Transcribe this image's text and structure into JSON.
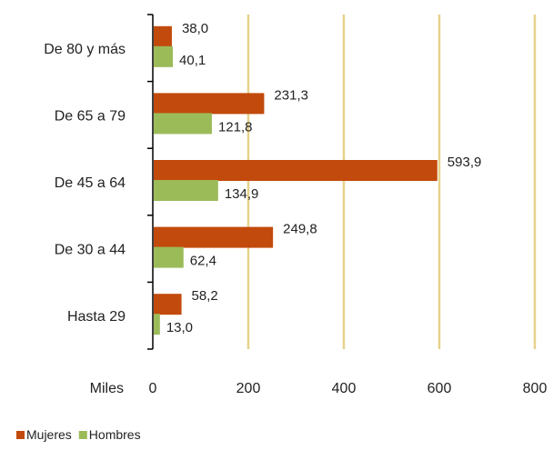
{
  "chart_data": {
    "type": "bar",
    "orientation": "horizontal",
    "categories": [
      "De 80 y más",
      "De 65 a 79",
      "De 45 a 64",
      "De 30 a 44",
      "Hasta 29"
    ],
    "series": [
      {
        "name": "Mujeres",
        "values": [
          38.0,
          231.3,
          593.9,
          249.8,
          58.2
        ],
        "labels": [
          "38,0",
          "231,3",
          "593,9",
          "249,8",
          "58,2"
        ],
        "color": "#C24A0C"
      },
      {
        "name": "Hombres",
        "values": [
          40.1,
          121.8,
          134.9,
          62.4,
          13.0
        ],
        "labels": [
          "40,1",
          "121,8",
          "134,9",
          "62,4",
          "13,0"
        ],
        "color": "#9BBB59"
      }
    ],
    "x_unit_label": "Miles",
    "xlim": [
      0,
      800
    ],
    "x_ticks": [
      "0",
      "200",
      "400",
      "600",
      "800"
    ],
    "grid": "vertical",
    "grid_color": "#E6D28A",
    "legend_position": "bottom-left"
  }
}
